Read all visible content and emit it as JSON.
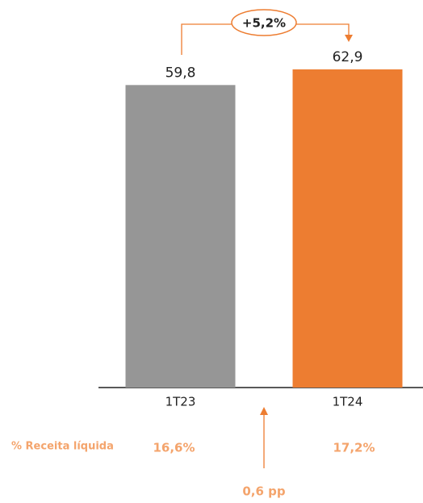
{
  "chart_data": {
    "type": "bar",
    "categories": [
      "1T23",
      "1T24"
    ],
    "values": [
      59.8,
      62.9
    ],
    "value_labels": [
      "59,8",
      "62,9"
    ],
    "colors": [
      "#969696",
      "#ED7D31"
    ],
    "ylim": [
      0,
      64
    ],
    "annotations": {
      "growth": "+5,2%",
      "margin_label": "% Receita líquida",
      "margins": [
        "16,6%",
        "17,2%"
      ],
      "margin_change": "0,6 pp"
    }
  }
}
